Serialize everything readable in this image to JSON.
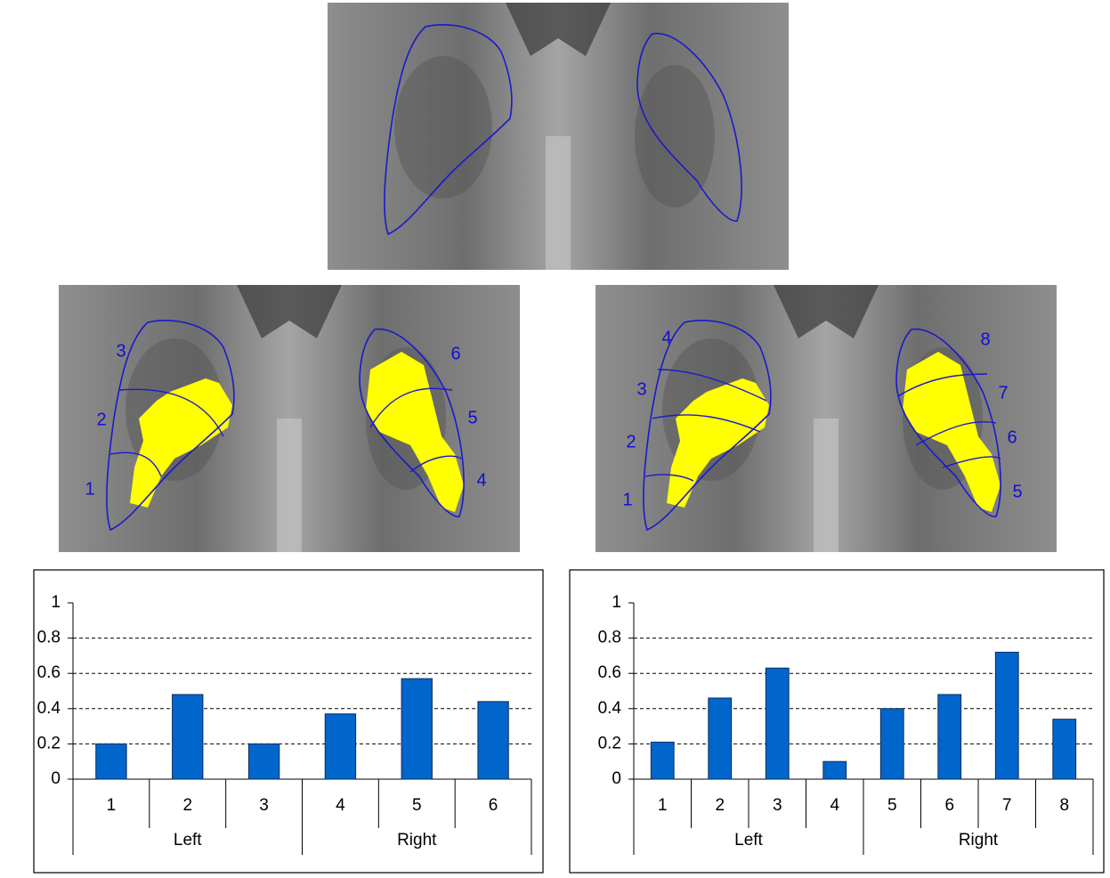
{
  "images": [
    {
      "labels": []
    },
    {
      "labels": [
        "1",
        "2",
        "3",
        "4",
        "5",
        "6"
      ]
    },
    {
      "labels": [
        "1",
        "2",
        "3",
        "4",
        "5",
        "6",
        "7",
        "8"
      ]
    }
  ],
  "chart_data": [
    {
      "type": "bar",
      "color": "#0066cc",
      "groups": [
        {
          "name": "Left",
          "categories": [
            "1",
            "2",
            "3"
          ]
        },
        {
          "name": "Right",
          "categories": [
            "4",
            "5",
            "6"
          ]
        }
      ],
      "values": [
        0.2,
        0.48,
        0.2,
        0.37,
        0.57,
        0.44
      ],
      "ylim": [
        0,
        1
      ],
      "yticks": [
        0,
        0.2,
        0.4,
        0.6,
        0.8,
        1
      ],
      "grid": true
    },
    {
      "type": "bar",
      "color": "#0066cc",
      "groups": [
        {
          "name": "Left",
          "categories": [
            "1",
            "2",
            "3",
            "4"
          ]
        },
        {
          "name": "Right",
          "categories": [
            "5",
            "6",
            "7",
            "8"
          ]
        }
      ],
      "values": [
        0.21,
        0.46,
        0.63,
        0.1,
        0.4,
        0.48,
        0.72,
        0.34
      ],
      "ylim": [
        0,
        1
      ],
      "yticks": [
        0,
        0.2,
        0.4,
        0.6,
        0.8,
        1
      ],
      "grid": true
    }
  ]
}
